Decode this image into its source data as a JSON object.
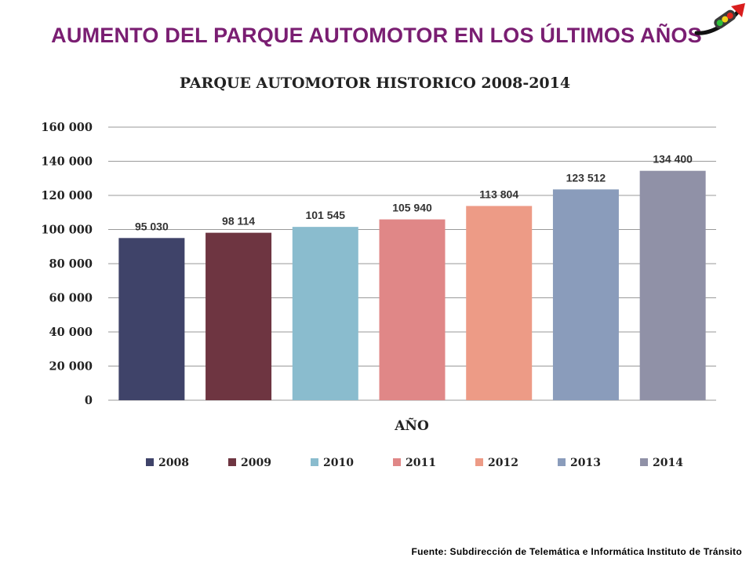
{
  "slide": {
    "title": "AUMENTO DEL PARQUE AUTOMOTOR EN LOS ÚLTIMOS AÑOS",
    "source": "Fuente: Subdirección de Telemática e Informática Instituto de Tránsito",
    "logo_icon": "traffic-light-icon",
    "title_color": "#7a1e72"
  },
  "chart_data": {
    "type": "bar",
    "title": "PARQUE AUTOMOTOR HISTORICO 2008-2014",
    "xlabel": "AÑO",
    "ylabel": "",
    "categories": [
      "2008",
      "2009",
      "2010",
      "2011",
      "2012",
      "2013",
      "2014"
    ],
    "values": [
      95030,
      98114,
      101545,
      105940,
      113804,
      123512,
      134400
    ],
    "value_labels": [
      "95 030",
      "98 114",
      "101 545",
      "105 940",
      "113 804",
      "123 512",
      "134 400"
    ],
    "colors": [
      "#3f4369",
      "#6e3541",
      "#8abcce",
      "#e08787",
      "#ed9b86",
      "#8a9cbb",
      "#9091a7"
    ],
    "ylim": [
      0,
      160000
    ],
    "yticks": [
      0,
      20000,
      40000,
      60000,
      80000,
      100000,
      120000,
      140000,
      160000
    ],
    "ytick_labels": [
      "0",
      "20 000",
      "40 000",
      "60 000",
      "80 000",
      "100 000",
      "120 000",
      "140 000",
      "160 000"
    ],
    "grid": true,
    "legend": {
      "placement": "bottom",
      "entries": [
        "2008",
        "2009",
        "2010",
        "2011",
        "2012",
        "2013",
        "2014"
      ]
    }
  }
}
